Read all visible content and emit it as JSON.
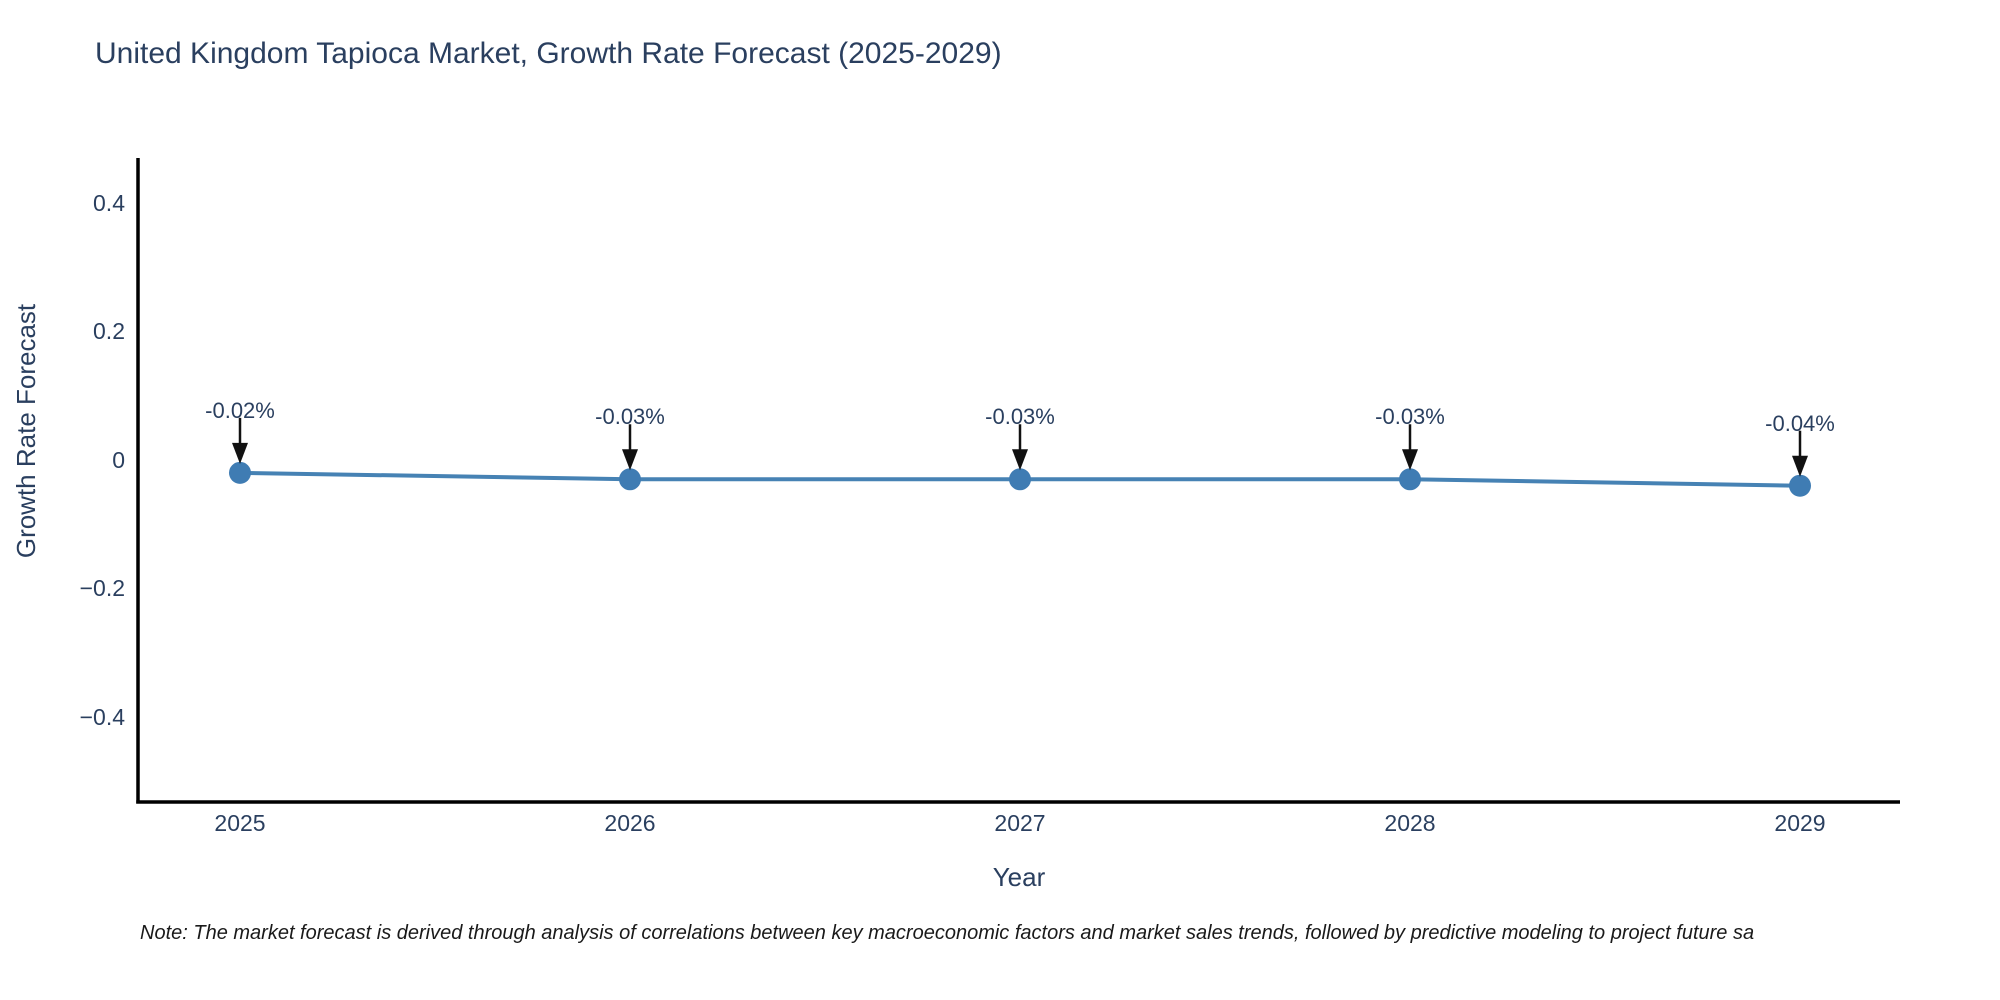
{
  "title": "United Kingdom Tapioca Market, Growth Rate Forecast (2025-2029)",
  "footnote": "Note: The market forecast is derived through analysis of correlations between key macroeconomic factors and market sales trends, followed by predictive modeling to project future sa",
  "chart_data": {
    "type": "line",
    "title": "United Kingdom Tapioca Market, Growth Rate Forecast (2025-2029)",
    "xlabel": "Year",
    "ylabel": "Growth Rate Forecast",
    "categories": [
      "2025",
      "2026",
      "2027",
      "2028",
      "2029"
    ],
    "series": [
      {
        "name": "Growth Rate Forecast",
        "values": [
          -0.02,
          -0.03,
          -0.03,
          -0.03,
          -0.04
        ]
      }
    ],
    "annotations": [
      "-0.02%",
      "-0.03%",
      "-0.03%",
      "-0.03%",
      "-0.04%"
    ],
    "ytick_labels": [
      "0.4",
      "0.2",
      "0",
      "−0.2",
      "−0.4"
    ],
    "ytick_values": [
      0.4,
      0.2,
      0,
      -0.2,
      -0.4
    ],
    "ylim": [
      -0.55,
      0.47
    ],
    "grid": false,
    "legend": "none",
    "colors": {
      "line": "#4682b4",
      "marker": "#3f7cb3",
      "axis": "#000000",
      "text": "#2a3f5f",
      "arrow": "#111111",
      "background": "#ffffff"
    }
  }
}
